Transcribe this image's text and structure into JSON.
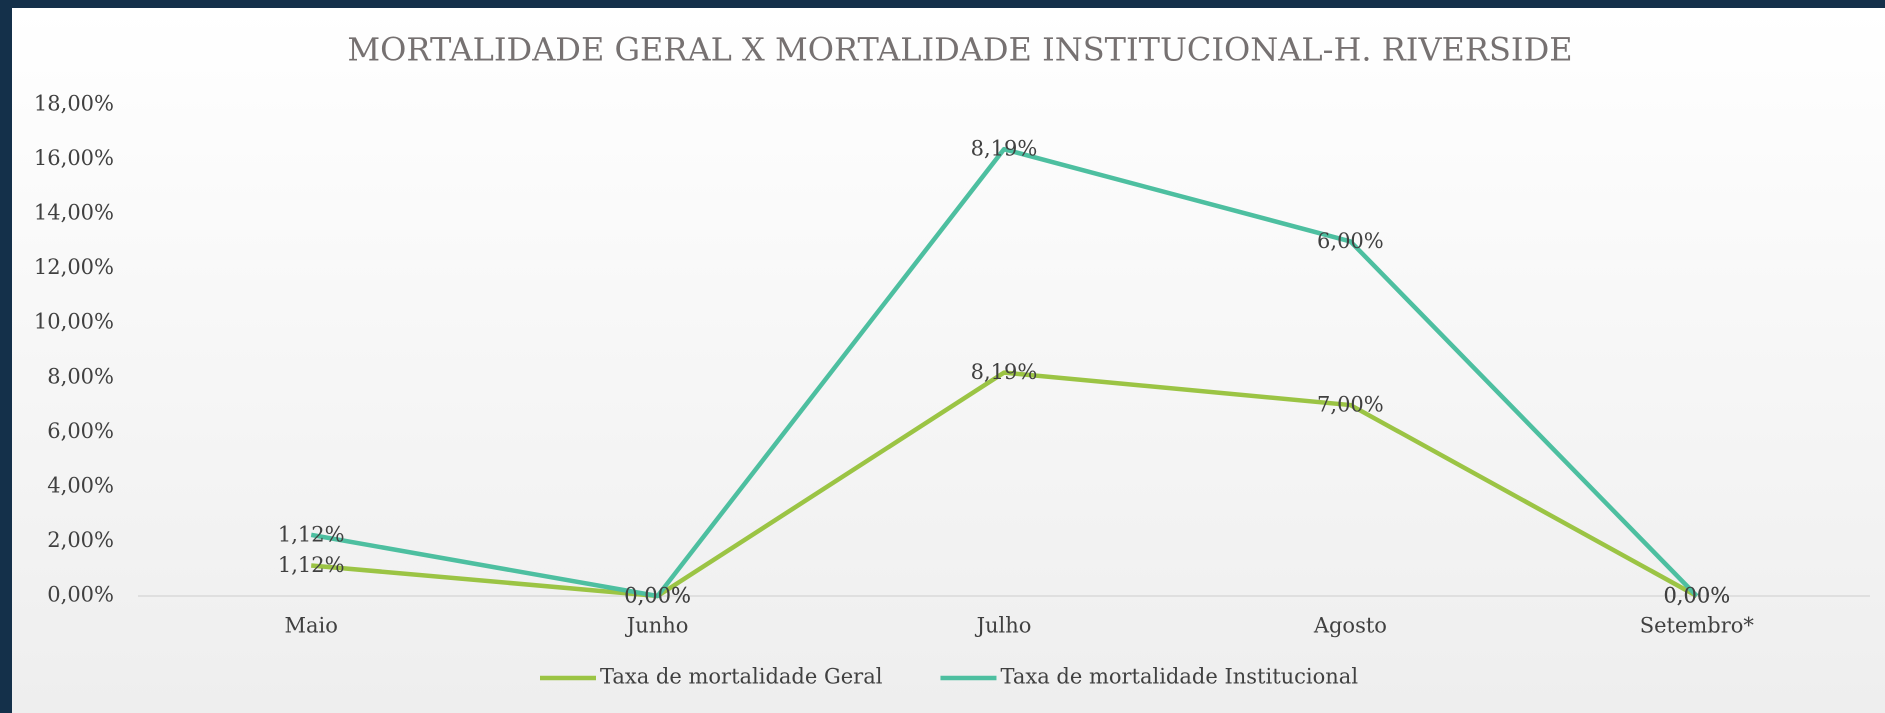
{
  "chart_data": {
    "type": "line",
    "stacked": true,
    "title": "MORTALIDADE GERAL X MORTALIDADE INSTITUCIONAL-H. RIVERSIDE",
    "categories": [
      "Maio",
      "Junho",
      "Julho",
      "Agosto",
      "Setembro*"
    ],
    "series": [
      {
        "name": "Taxa de mortalidade Geral",
        "color": "#9bc444",
        "values": [
          1.12,
          0,
          8.19,
          7,
          0
        ],
        "value_labels": [
          "1,12%",
          "0,00%",
          "8,19%",
          "7,00%",
          "0,00%"
        ]
      },
      {
        "name": "Taxa de mortalidade Institucional",
        "color": "#4dbfa0",
        "values": [
          1.12,
          0,
          8.19,
          6,
          0
        ],
        "value_labels": [
          "1,12%",
          "0,00%",
          "8,19%",
          "6,00%",
          "0,00%"
        ]
      }
    ],
    "ylim": [
      0,
      18
    ],
    "yticks": [
      {
        "value": 0,
        "label": "0,00%"
      },
      {
        "value": 2,
        "label": "2,00%"
      },
      {
        "value": 4,
        "label": "4,00%"
      },
      {
        "value": 6,
        "label": "6,00%"
      },
      {
        "value": 8,
        "label": "8,00%"
      },
      {
        "value": 10,
        "label": "10,00%"
      },
      {
        "value": 12,
        "label": "12,00%"
      },
      {
        "value": 14,
        "label": "14,00%"
      },
      {
        "value": 16,
        "label": "16,00%"
      },
      {
        "value": 18,
        "label": "18,00%"
      }
    ],
    "legend": "bottom"
  }
}
